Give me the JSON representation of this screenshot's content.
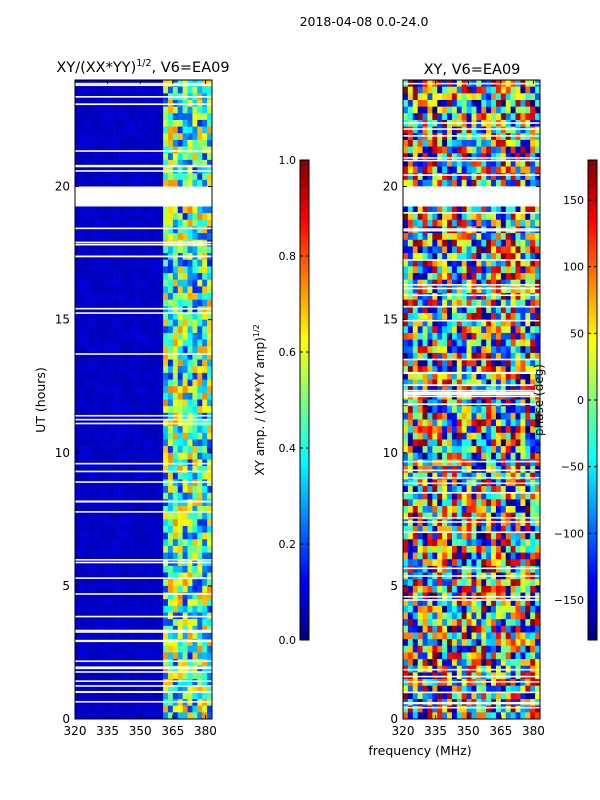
{
  "suptitle": "2018-04-08 0.0-24.0",
  "shared_xlabel": "frequency (MHz)",
  "colormap": [
    "#00007f",
    "#0000ff",
    "#0080ff",
    "#00ffff",
    "#7dff7a",
    "#ffff00",
    "#ff8000",
    "#ff0000",
    "#7f0000"
  ],
  "gap_color": "#ffffff",
  "chart_data": [
    {
      "type": "heatmap",
      "title": "XY/(XX*YY)^(1/2), V6=EA09",
      "title_parts": {
        "main": "XY/(XX*YY)",
        "sup": "1/2",
        "tail": ", V6=EA09"
      },
      "xlabel": "",
      "ylabel": "UT (hours)",
      "xlim": [
        320,
        383
      ],
      "ylim": [
        0,
        24
      ],
      "xticks": [
        320,
        335,
        350,
        365,
        380
      ],
      "yticks": [
        0,
        5,
        10,
        15,
        20
      ],
      "colorbar": {
        "label": "XY amp. / (XX*YY amp)^(1/2)",
        "label_parts": {
          "main": "XY amp. / (XX*YY amp)",
          "sup": "1/2"
        },
        "range": [
          0.0,
          1.0
        ],
        "ticks": [
          0.0,
          0.2,
          0.4,
          0.6,
          0.8,
          1.0
        ],
        "tick_labels": [
          "0.0",
          "0.2",
          "0.4",
          "0.6",
          "0.8",
          "1.0"
        ]
      },
      "description_values": {
        "low_band_mhz": [
          320,
          360
        ],
        "low_band_level": 0.05,
        "high_band_mhz": [
          360,
          383
        ],
        "high_band_level_range": [
          0.15,
          0.75
        ],
        "gap_hours": [
          [
            19.3,
            20.1
          ]
        ]
      }
    },
    {
      "type": "heatmap",
      "title": "XY, V6=EA09",
      "xlabel": "frequency (MHz)",
      "ylabel": "",
      "xlim": [
        320,
        383
      ],
      "ylim": [
        0,
        24
      ],
      "xticks": [
        320,
        335,
        350,
        365,
        380
      ],
      "yticks": [
        0,
        5,
        10,
        15,
        20
      ],
      "colorbar": {
        "label": "phase (deg)",
        "range": [
          -180,
          180
        ],
        "ticks": [
          -150,
          -100,
          -50,
          0,
          50,
          100,
          150
        ],
        "tick_labels": [
          "−150",
          "−100",
          "−50",
          "0",
          "50",
          "100",
          "150"
        ]
      },
      "description_values": {
        "phase_range_deg": [
          -180,
          180
        ],
        "gap_hours": [
          [
            19.3,
            20.1
          ]
        ]
      }
    }
  ]
}
